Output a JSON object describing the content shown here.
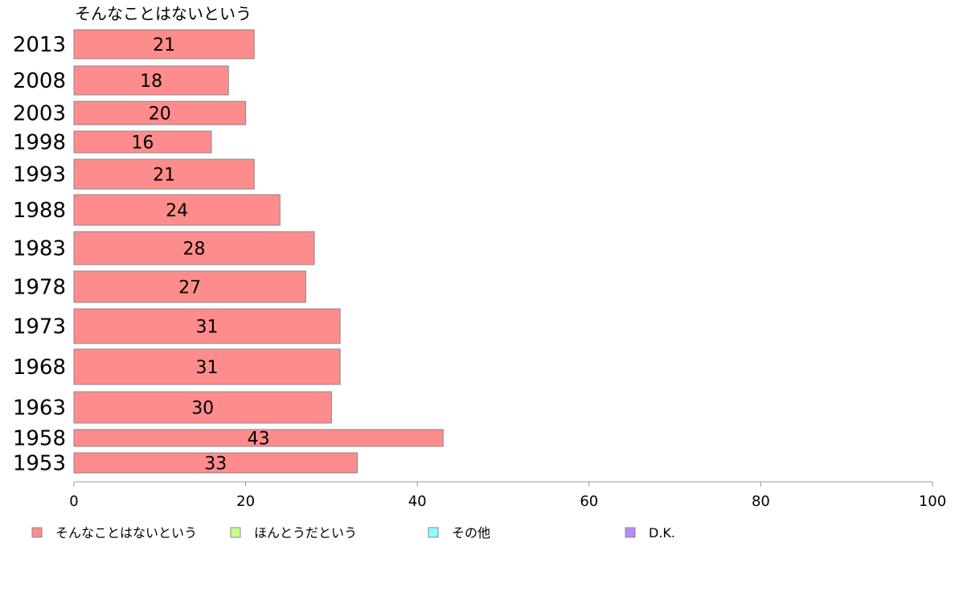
{
  "chart_data": {
    "type": "bar",
    "orientation": "horizontal",
    "title": "",
    "series_title": "そんなことはないという",
    "categories": [
      "2013",
      "2008",
      "2003",
      "1998",
      "1993",
      "1988",
      "1983",
      "1978",
      "1973",
      "1968",
      "1963",
      "1958",
      "1953"
    ],
    "series": [
      {
        "name": "そんなことはないという",
        "values": [
          21,
          18,
          20,
          16,
          21,
          24,
          28,
          27,
          31,
          31,
          30,
          43,
          33
        ],
        "color": "#ff8c8c"
      }
    ],
    "xlim": [
      0,
      100
    ],
    "xticks": [
      0,
      20,
      40,
      60,
      80,
      100
    ],
    "xlabel": "",
    "ylabel": "",
    "grid": false,
    "legend_position": "bottom",
    "legend": [
      {
        "label": "そんなことはないという",
        "color": "#ff8c8c"
      },
      {
        "label": "ほんとうだという",
        "color": "#c8ff8c"
      },
      {
        "label": "その他",
        "color": "#8cffff"
      },
      {
        "label": "D.K.",
        "color": "#b48cff"
      }
    ]
  }
}
